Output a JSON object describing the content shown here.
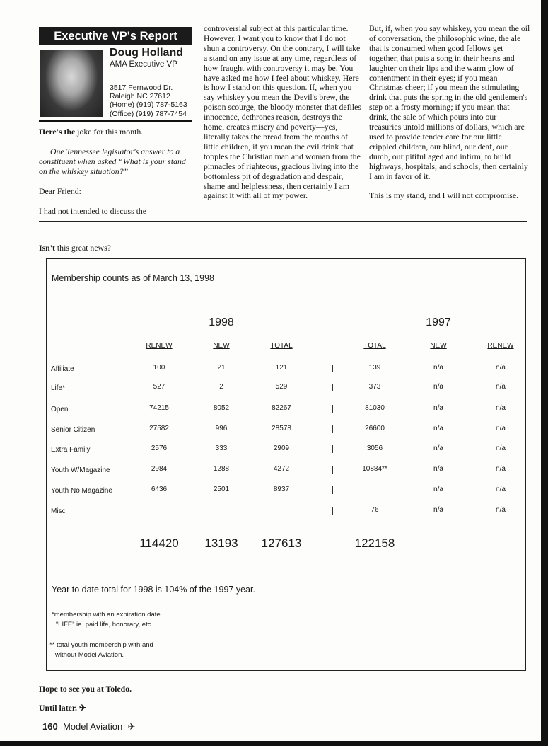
{
  "header": {
    "title": "Executive VP's Report",
    "name": "Doug Holland",
    "role": "AMA Executive VP",
    "address": [
      "3517 Fernwood Dr.",
      "Raleigh NC 27612",
      "(Home) (919) 787-5163",
      "(Office) (919) 787-7454"
    ]
  },
  "article": {
    "intro_bold": "Here's the",
    "intro_rest": " joke for this month.",
    "lead": "One Tennessee legislator's answer to a constituent when asked “What is your stand on the whiskey situation?”",
    "salutation": "Dear Friend:",
    "p1_start": "I had not intended to discuss the",
    "p1_cont": "controversial subject at this particular time. However, I want you to know that I do not shun a controversy. On the contrary, I will take a stand on any issue at any time, regardless of how fraught with controversy it may be. You have asked me how I feel about whiskey. Here is how I stand on this question. If, when you say whiskey you mean the Devil's brew, the poison scourge, the bloody monster that defiles innocence, dethrones reason, destroys the home, creates misery and poverty—yes, literally takes the bread from the mouths of little children, if you mean the evil drink that topples the Christian man and woman from the pinnacles of righteous, gracious living into the bottomless pit of degradation and despair, shame and helplessness, then certainly I am against it with all of my power.",
    "p2": "But, if, when you say whiskey, you mean the oil of conversation, the philosophic wine, the ale that is consumed when good fellows get together, that puts a song in their hearts and laughter on their lips and the warm glow of contentment in their eyes; if you mean Christmas cheer; if you mean the stimulating drink that puts the spring in the old gentlemen's step on a frosty morning; if you mean that drink, the sale of which pours into our treasuries untold millions of dollars, which are used to provide tender care for our little crippled children, our blind, our deaf, our dumb, our pitiful aged and infirm, to build highways, hospitals, and schools, then certainly I am in favor of it.",
    "p3": "This is my stand, and I will not compromise.",
    "news_bold": "Isn't",
    "news_rest": " this great news?",
    "closing1": "Hope to see you at Toledo.",
    "closing2": "Until later. ✈"
  },
  "membership": {
    "title": "Membership counts as of March 13, 1998",
    "year_1998": "1998",
    "year_1997": "1997",
    "columns": [
      "RENEW",
      "NEW",
      "TOTAL",
      "TOTAL",
      "NEW",
      "RENEW"
    ],
    "rows": [
      {
        "label": "Affiliate",
        "values": [
          "100",
          "21",
          "121",
          "139",
          "n/a",
          "n/a"
        ]
      },
      {
        "label": "Life*",
        "values": [
          "527",
          "2",
          "529",
          "373",
          "n/a",
          "n/a"
        ]
      },
      {
        "label": "Open",
        "values": [
          "74215",
          "8052",
          "82267",
          "81030",
          "n/a",
          "n/a"
        ]
      },
      {
        "label": "Senior Citizen",
        "values": [
          "27582",
          "996",
          "28578",
          "26600",
          "n/a",
          "n/a"
        ]
      },
      {
        "label": "Extra Family",
        "values": [
          "2576",
          "333",
          "2909",
          "3056",
          "n/a",
          "n/a"
        ]
      },
      {
        "label": "Youth W/Magazine",
        "values": [
          "2984",
          "1288",
          "4272",
          "10884**",
          "n/a",
          "n/a"
        ]
      },
      {
        "label": "Youth No Magazine",
        "values": [
          "6436",
          "2501",
          "8937",
          "",
          "n/a",
          "n/a"
        ]
      },
      {
        "label": "Misc",
        "values": [
          "",
          "",
          "",
          "76",
          "n/a",
          "n/a"
        ]
      }
    ],
    "totals": [
      "114420",
      "13193",
      "127613",
      "122158"
    ],
    "summary": "Year to date total for 1998 is 104% of the 1997 year.",
    "note1a": "*membership with an expiration date",
    "note1b": "“LIFE” ie. paid life, honorary, etc.",
    "note2a": "** total youth membership with and",
    "note2b": "without Model Aviation."
  },
  "footer": {
    "page": "160",
    "magazine": "Model Aviation",
    "icon": "airplane-icon"
  }
}
